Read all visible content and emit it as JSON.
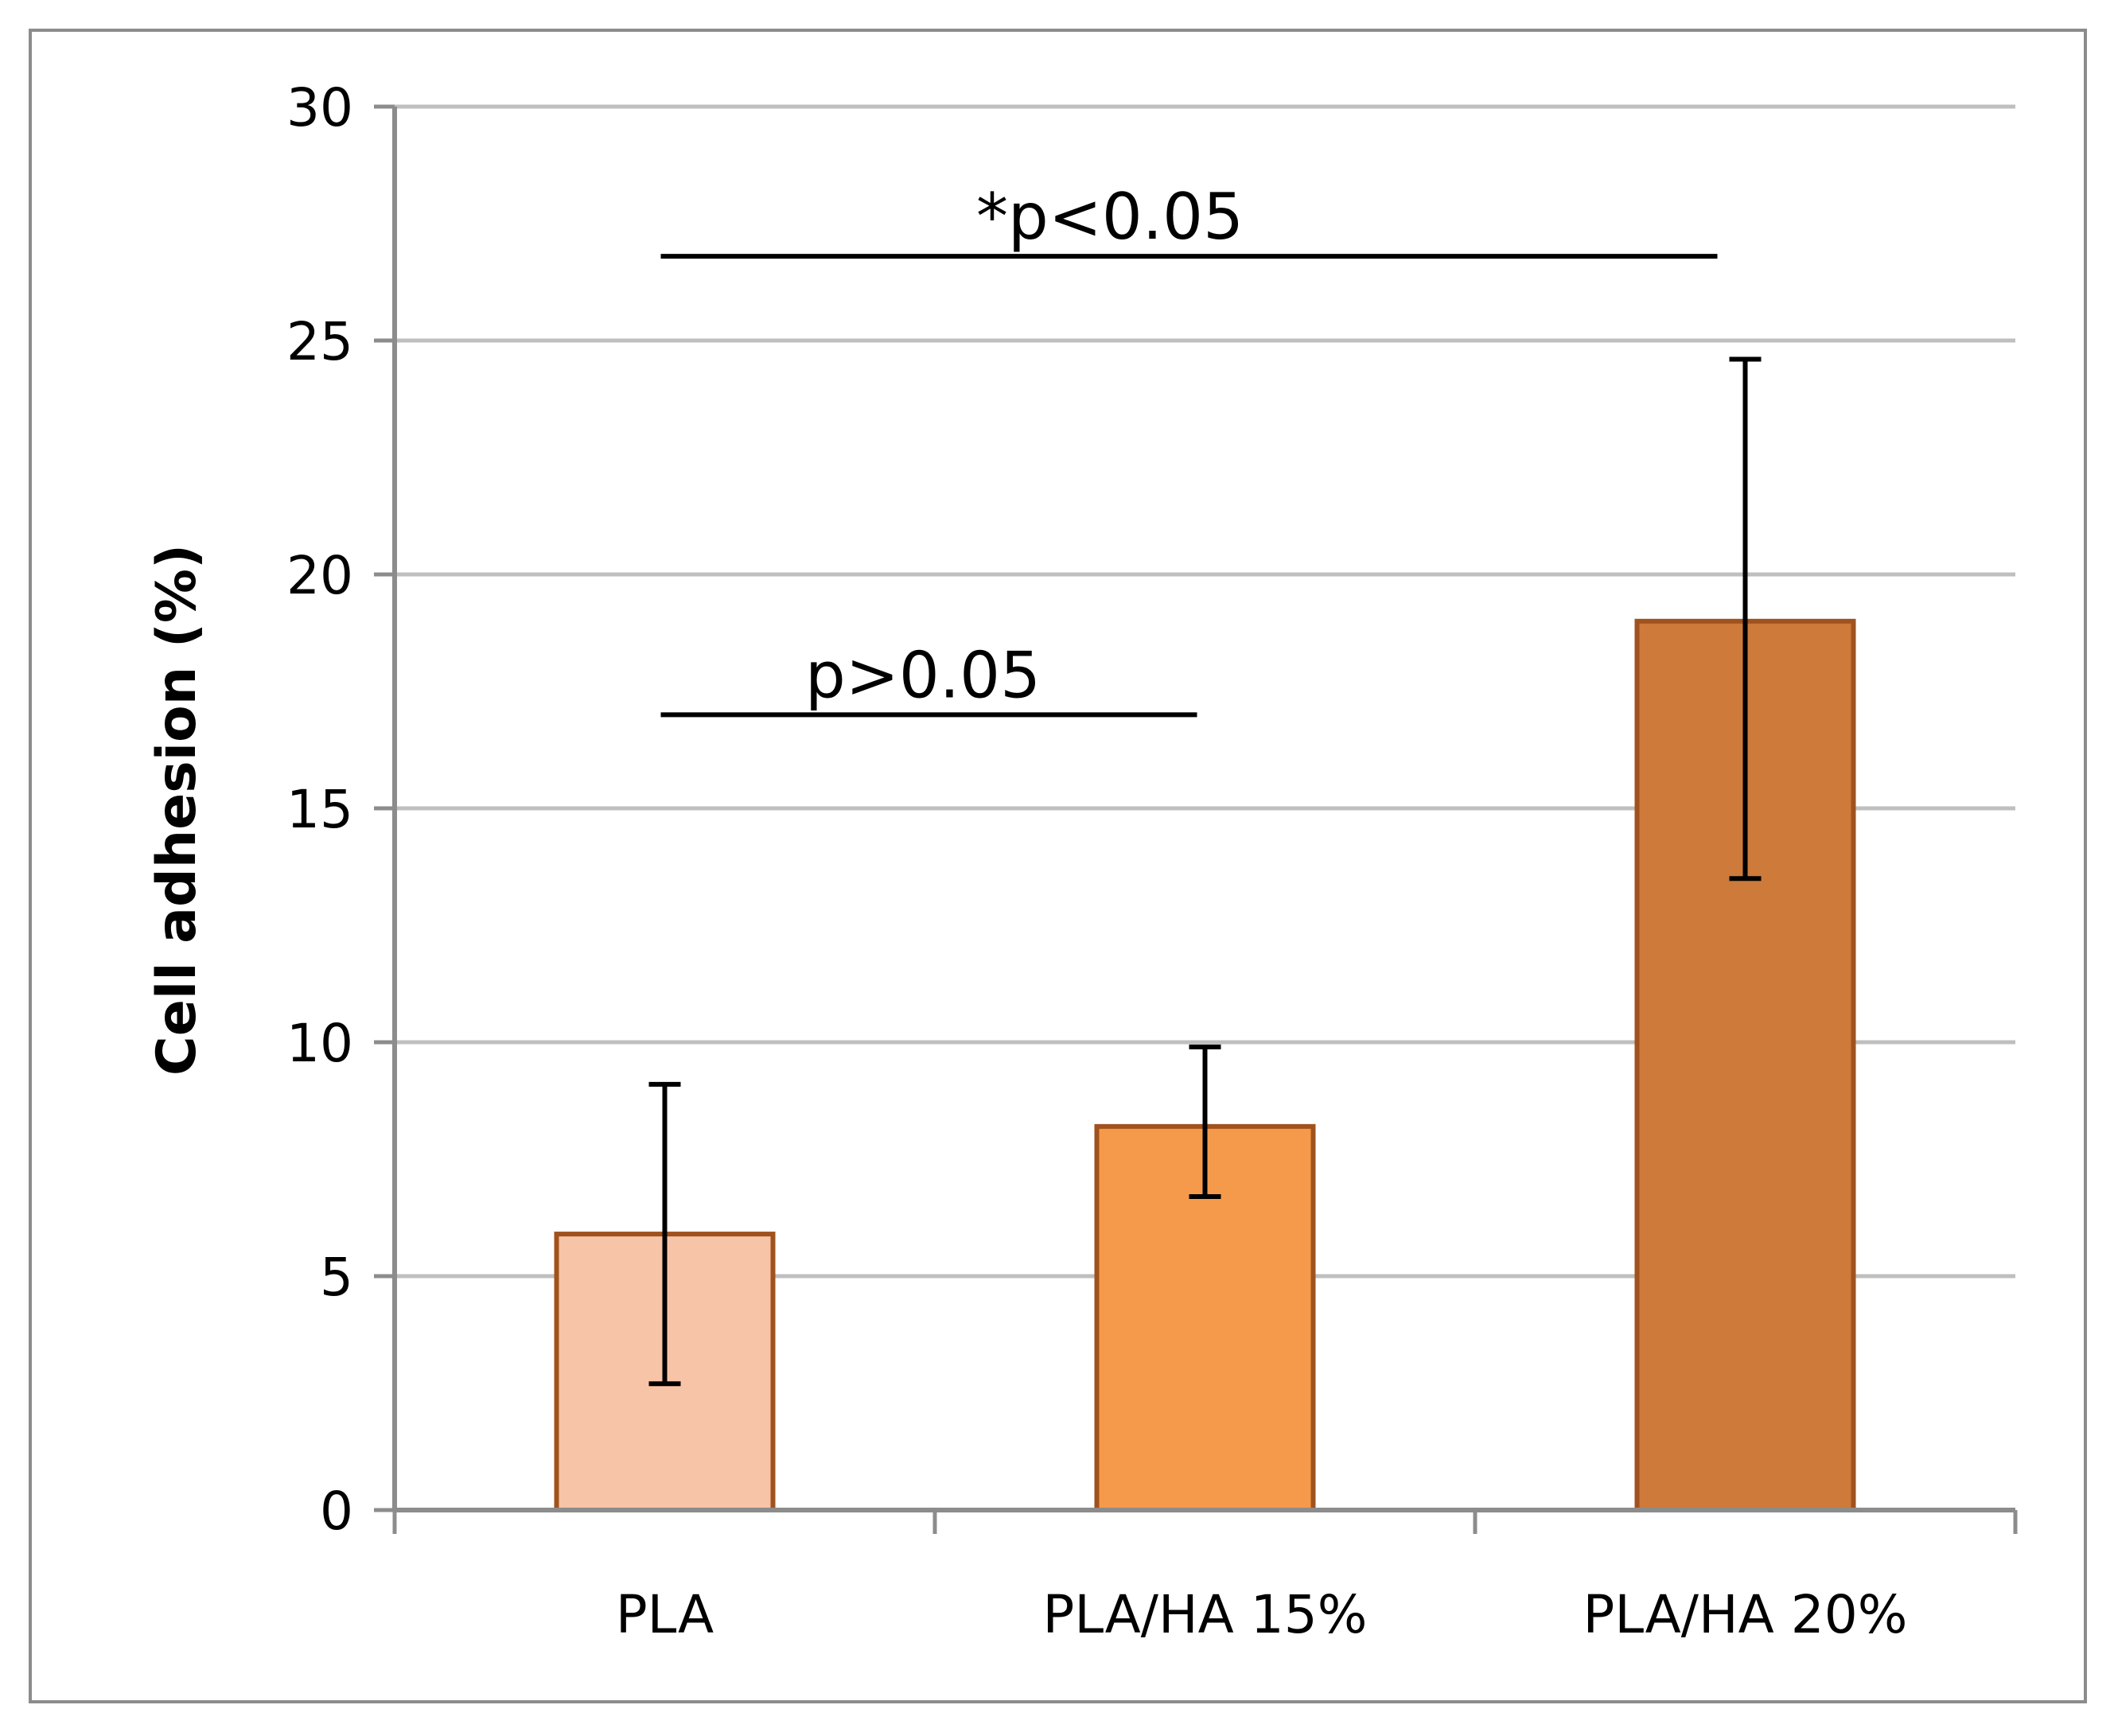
{
  "chart_data": {
    "type": "bar",
    "title": "",
    "xlabel": "",
    "ylabel": "Cell adhesion (%)",
    "ylim": [
      0,
      30
    ],
    "yticks": [
      0,
      5,
      10,
      15,
      20,
      25,
      30
    ],
    "ytick_labels": [
      "0",
      "5",
      "10",
      "15",
      "20",
      "25",
      "30"
    ],
    "grid": true,
    "legend": "none",
    "categories": [
      "PLA",
      "PLA/HA 15%",
      "PLA/HA 20%"
    ],
    "values": [
      5.9,
      8.2,
      19.0
    ],
    "error_low": [
      2.7,
      6.7,
      13.5
    ],
    "error_high": [
      9.1,
      9.9,
      24.6
    ],
    "bar_colors": [
      "#F8C4A8",
      "#F59A4A",
      "#CD7A3A"
    ],
    "bar_edge_color": "#A0521E",
    "annotations": [
      {
        "text": "*p<0.05",
        "from_category": 0,
        "to_category": 2,
        "y": 26.8
      },
      {
        "text": "p>0.05",
        "from_category": 0,
        "to_category": 1,
        "y": 17.0
      }
    ]
  }
}
